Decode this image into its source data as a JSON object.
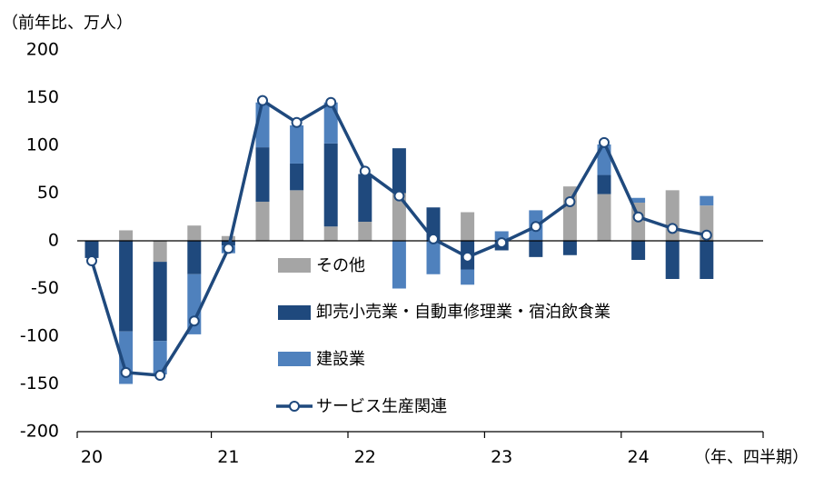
{
  "chart_data": {
    "type": "bar",
    "subtype": "stacked bar with line",
    "y_unit_label": "（前年比、万人）",
    "x_unit_label": "（年、四半期）",
    "ylim": [
      -200,
      200
    ],
    "yticks": [
      200,
      150,
      100,
      50,
      0,
      -50,
      -100,
      -150,
      -200
    ],
    "year_labels": [
      "20",
      "21",
      "22",
      "23",
      "24"
    ],
    "quarters": [
      "2020Q1",
      "2020Q2",
      "2020Q3",
      "2020Q4",
      "2021Q1",
      "2021Q2",
      "2021Q3",
      "2021Q4",
      "2022Q1",
      "2022Q2",
      "2022Q3",
      "2022Q4",
      "2023Q1",
      "2023Q2",
      "2023Q3",
      "2023Q4",
      "2024Q1",
      "2024Q2",
      "2024Q3",
      "2024Q4"
    ],
    "grid": false,
    "legend_position": "center",
    "series": [
      {
        "name": "その他",
        "kind": "bar",
        "color": "#A5A5A5",
        "values": [
          0,
          11,
          -22,
          16,
          5,
          41,
          53,
          15,
          20,
          50,
          0,
          30,
          0,
          0,
          57,
          49,
          40,
          53,
          37,
          0
        ]
      },
      {
        "name": "卸売小売業・自動車修理業・宿泊飲食業",
        "kind": "bar",
        "color": "#1F497D",
        "values": [
          -18,
          -95,
          -83,
          -35,
          -5,
          57,
          28,
          87,
          50,
          47,
          35,
          -30,
          -10,
          -17,
          -15,
          20,
          -20,
          -40,
          -40,
          0
        ]
      },
      {
        "name": "建設業",
        "kind": "bar",
        "color": "#4F81BD",
        "values": [
          0,
          -55,
          -35,
          -63,
          -8,
          47,
          40,
          43,
          0,
          -50,
          -35,
          -16,
          10,
          32,
          0,
          32,
          5,
          0,
          10,
          0
        ]
      },
      {
        "name": "サービス生産関連",
        "kind": "line",
        "color": "#1F497D",
        "values": [
          -21,
          -138,
          -141,
          -84,
          -8,
          147,
          124,
          145,
          73,
          47,
          2,
          -17,
          -2,
          15,
          41,
          103,
          25,
          13,
          6,
          null
        ]
      }
    ]
  }
}
